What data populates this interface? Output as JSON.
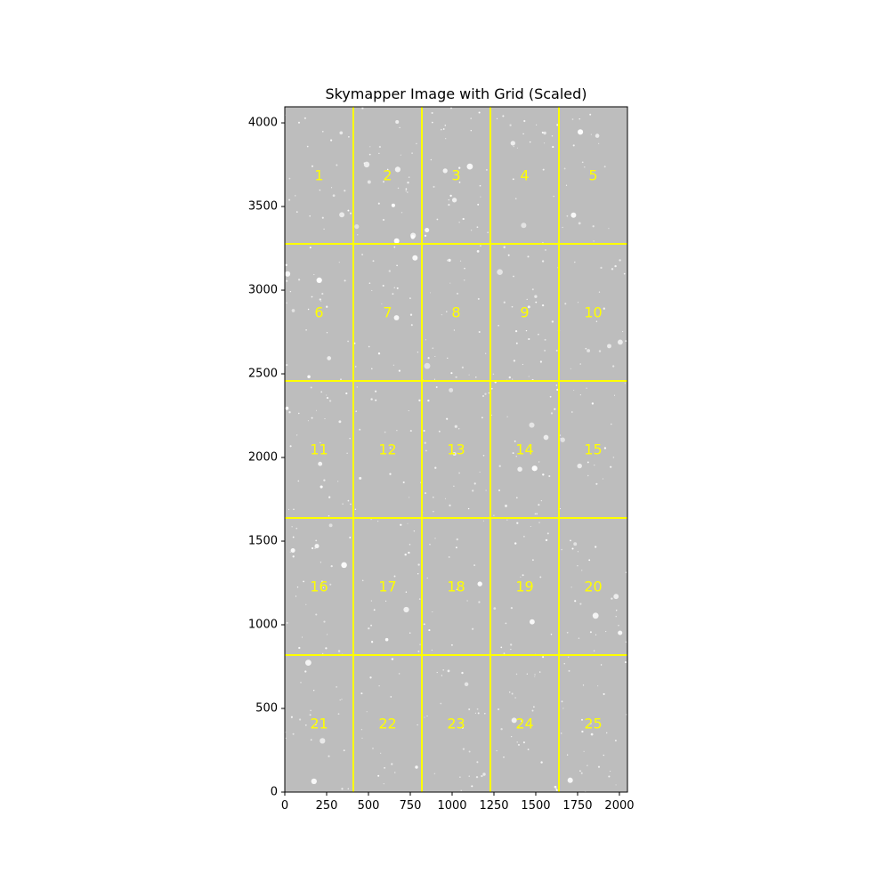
{
  "title": "Skymapper Image with Grid (Scaled)",
  "image": {
    "x_range": [
      0,
      2048
    ],
    "y_range": [
      0,
      4096
    ],
    "background_color": "#bdbdbd",
    "grid_color": "#ffff00"
  },
  "axes": {
    "x_ticks": [
      0,
      250,
      500,
      750,
      1000,
      1250,
      1500,
      1750,
      2000
    ],
    "y_ticks": [
      0,
      500,
      1000,
      1500,
      2000,
      2500,
      3000,
      3500,
      4000
    ]
  },
  "grid": {
    "x_lines": [
      409.6,
      819.2,
      1228.8,
      1638.4
    ],
    "y_lines": [
      819.2,
      1638.4,
      2457.6,
      3276.8
    ],
    "cells": [
      {
        "label": "1",
        "x": 204.8,
        "y": 3686.4
      },
      {
        "label": "2",
        "x": 614.4,
        "y": 3686.4
      },
      {
        "label": "3",
        "x": 1024.0,
        "y": 3686.4
      },
      {
        "label": "4",
        "x": 1433.6,
        "y": 3686.4
      },
      {
        "label": "5",
        "x": 1843.2,
        "y": 3686.4
      },
      {
        "label": "6",
        "x": 204.8,
        "y": 2867.2
      },
      {
        "label": "7",
        "x": 614.4,
        "y": 2867.2
      },
      {
        "label": "8",
        "x": 1024.0,
        "y": 2867.2
      },
      {
        "label": "9",
        "x": 1433.6,
        "y": 2867.2
      },
      {
        "label": "10",
        "x": 1843.2,
        "y": 2867.2
      },
      {
        "label": "11",
        "x": 204.8,
        "y": 2048.0
      },
      {
        "label": "12",
        "x": 614.4,
        "y": 2048.0
      },
      {
        "label": "13",
        "x": 1024.0,
        "y": 2048.0
      },
      {
        "label": "14",
        "x": 1433.6,
        "y": 2048.0
      },
      {
        "label": "15",
        "x": 1843.2,
        "y": 2048.0
      },
      {
        "label": "16",
        "x": 204.8,
        "y": 1228.8
      },
      {
        "label": "17",
        "x": 614.4,
        "y": 1228.8
      },
      {
        "label": "18",
        "x": 1024.0,
        "y": 1228.8
      },
      {
        "label": "19",
        "x": 1433.6,
        "y": 1228.8
      },
      {
        "label": "20",
        "x": 1843.2,
        "y": 1228.8
      },
      {
        "label": "21",
        "x": 204.8,
        "y": 409.6
      },
      {
        "label": "22",
        "x": 614.4,
        "y": 409.6
      },
      {
        "label": "23",
        "x": 1024.0,
        "y": 409.6
      },
      {
        "label": "24",
        "x": 1433.6,
        "y": 409.6
      },
      {
        "label": "25",
        "x": 1843.2,
        "y": 409.6
      }
    ]
  }
}
